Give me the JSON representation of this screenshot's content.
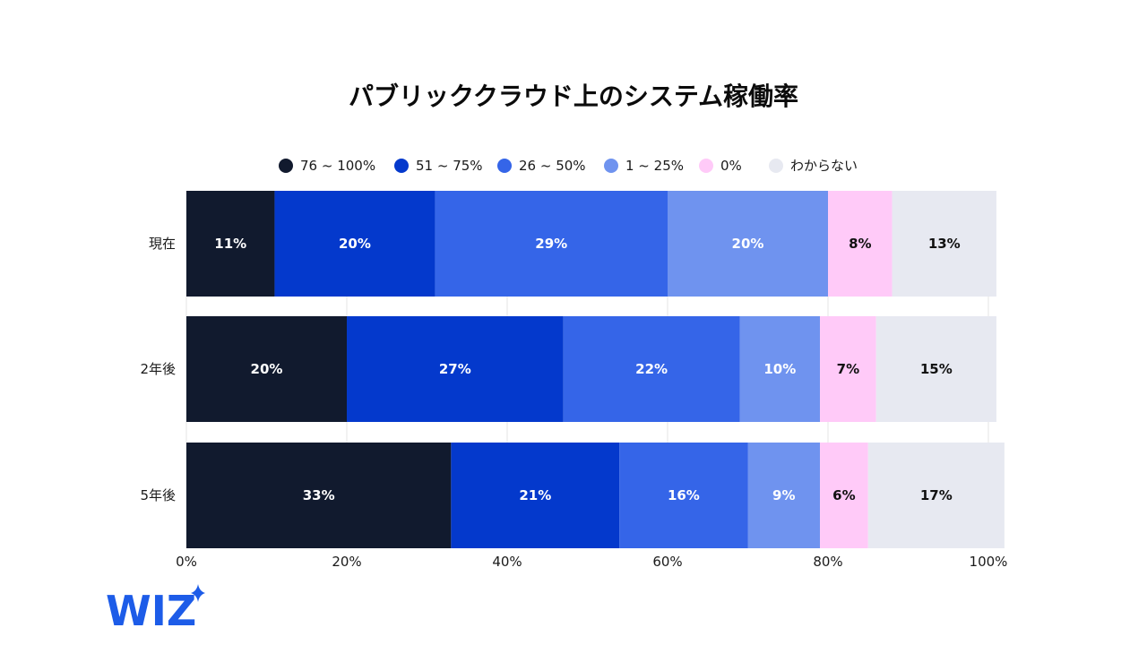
{
  "chart_data": {
    "type": "bar",
    "orientation": "horizontal",
    "stacked": true,
    "title": "パブリッククラウド上のシステム稼働率",
    "categories": [
      "現在",
      "2年後",
      "5年後"
    ],
    "series": [
      {
        "name": "76 ~ 100%",
        "color": "#111a2e",
        "values": [
          11,
          20,
          33
        ]
      },
      {
        "name": "51 ~ 75%",
        "color": "#0439cc",
        "values": [
          20,
          27,
          21
        ]
      },
      {
        "name": "26 ~ 50%",
        "color": "#3565e8",
        "values": [
          29,
          22,
          16
        ]
      },
      {
        "name": "1 ~ 25%",
        "color": "#6f93ef",
        "values": [
          20,
          10,
          9
        ]
      },
      {
        "name": "0%",
        "color": "#ffcaf8",
        "values": [
          8,
          7,
          6
        ]
      },
      {
        "name": "わからない",
        "color": "#e7e9f1",
        "values": [
          13,
          15,
          17
        ]
      }
    ],
    "data_labels": [
      [
        "11%",
        "20%",
        "29%",
        "20%",
        "8%",
        "13%"
      ],
      [
        "20%",
        "27%",
        "22%",
        "10%",
        "7%",
        "15%"
      ],
      [
        "33%",
        "21%",
        "16%",
        "9%",
        "6%",
        "17%"
      ]
    ],
    "xlim": [
      0,
      100
    ],
    "x_ticks": [
      0,
      20,
      40,
      60,
      80,
      100
    ],
    "x_tick_labels": [
      "0%",
      "20%",
      "40%",
      "60%",
      "80%",
      "100%"
    ],
    "legend_position": "top-center",
    "grid": true
  },
  "logo": {
    "text": "WIZ",
    "color": "#1d5ce8",
    "icon": "sparkle-icon"
  }
}
